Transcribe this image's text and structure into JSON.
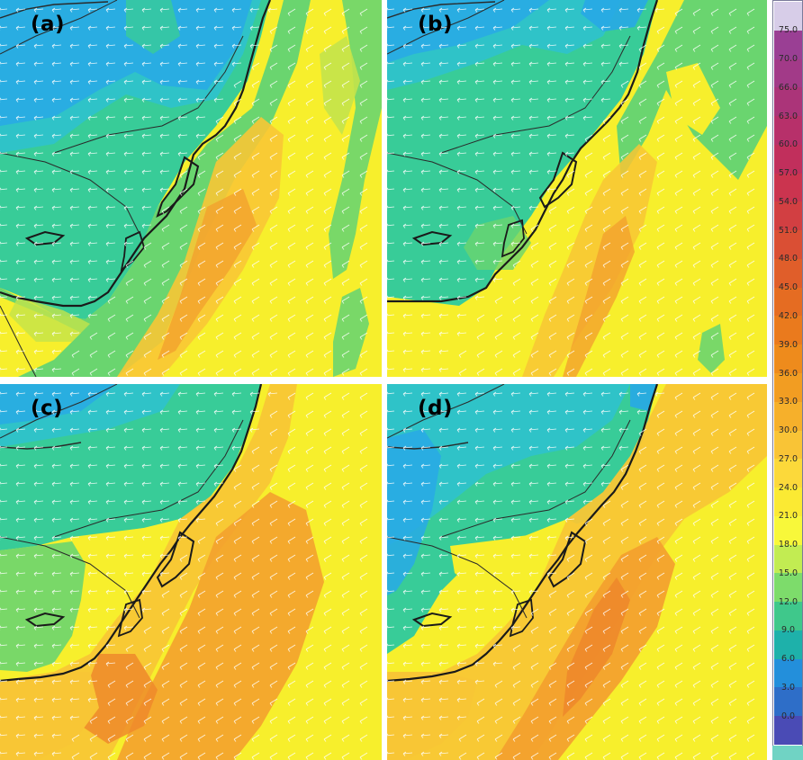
{
  "panels": [
    {
      "id": "a",
      "label": "(a)"
    },
    {
      "id": "b",
      "label": "(b)"
    },
    {
      "id": "c",
      "label": "(c)"
    },
    {
      "id": "d",
      "label": "(d)"
    }
  ],
  "colorbar": {
    "labels": [
      "75.0",
      "70.0",
      "66.0",
      "63.0",
      "60.0",
      "57.0",
      "54.0",
      "51.0",
      "48.0",
      "45.0",
      "42.0",
      "39.0",
      "36.0",
      "33.0",
      "30.0",
      "27.0",
      "24.0",
      "21.0",
      "18.0",
      "15.0",
      "12.0",
      "9.0",
      "6.0",
      "3.0",
      "0.0"
    ],
    "colors": [
      "#d7cde8",
      "#9a3f94",
      "#a23a88",
      "#ab3479",
      "#b7306a",
      "#c12f5c",
      "#cb344f",
      "#d23f42",
      "#da4f34",
      "#e05e2a",
      "#e56c22",
      "#ea7a1d",
      "#ee8b1c",
      "#f29d22",
      "#f6b02b",
      "#f9c436",
      "#fcd93a",
      "#fbea33",
      "#f8f83a",
      "#c2ec52",
      "#7ddc6b",
      "#3fc88b",
      "#1eb1aa",
      "#238fdb",
      "#2e6ec8",
      "#4a4bb5"
    ]
  },
  "map_colors": {
    "blue": "#28a9e6",
    "cyan_blue": "#2fc3c8",
    "teal_green": "#38cc98",
    "green": "#6ad56f",
    "yellow_green": "#c3e34b",
    "yellow": "#f7ef2c",
    "light_orange": "#f8c635",
    "orange": "#f3a12e",
    "dark_orange": "#ee8a2b",
    "coast": "#1a1a1a",
    "border": "#2a2a2a",
    "arrow": "#ffffff"
  }
}
